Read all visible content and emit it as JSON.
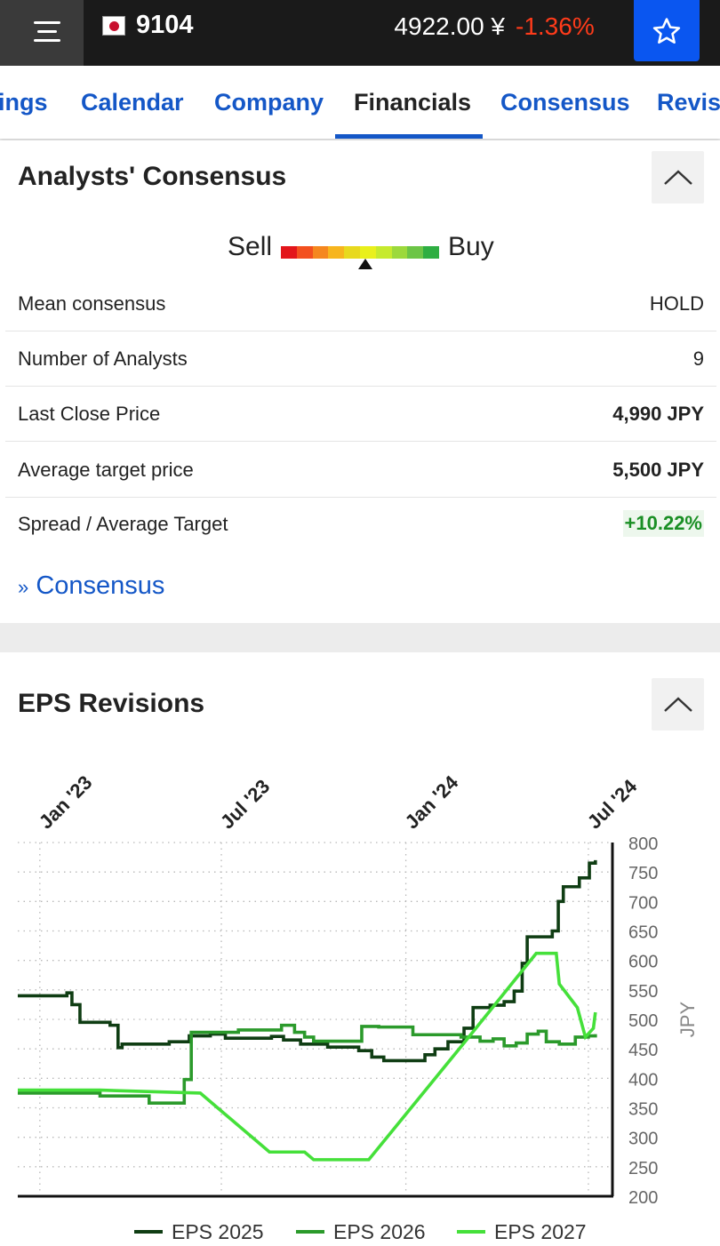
{
  "header": {
    "ticker": "9104",
    "price": "4922.00 ¥",
    "change": "-1.36%"
  },
  "tabs": [
    {
      "label": "ings"
    },
    {
      "label": "Calendar"
    },
    {
      "label": "Company"
    },
    {
      "label": "Financials",
      "active": true
    },
    {
      "label": "Consensus"
    },
    {
      "label": "Revisi"
    }
  ],
  "consensus": {
    "title": "Analysts' Consensus",
    "gauge": {
      "sell_label": "Sell",
      "buy_label": "Buy",
      "level": 0.52,
      "colors": [
        "#e3161b",
        "#f3501f",
        "#f5871f",
        "#f7b51e",
        "#e8d91e",
        "#e9f01c",
        "#c6ea2e",
        "#9cd93c",
        "#6cc546",
        "#2eae42"
      ]
    },
    "rows": [
      {
        "label": "Mean consensus",
        "value": "HOLD"
      },
      {
        "label": "Number of Analysts",
        "value": "9"
      },
      {
        "label": "Last Close Price",
        "value": "4,990 JPY"
      },
      {
        "label": "Average target price",
        "value": "5,500 JPY"
      },
      {
        "label": "Spread / Average Target",
        "value": "+10.22%"
      }
    ],
    "link_prefix": "»",
    "link_label": "Consensus"
  },
  "eps": {
    "title": "EPS Revisions"
  },
  "chart_data": {
    "type": "line",
    "title": "EPS Revisions",
    "x_ticks": [
      "Jan '23",
      "Jul '23",
      "Jan '24",
      "Jul '24"
    ],
    "x_range": [
      "2022-12-10",
      "2024-07-25"
    ],
    "ylabel": "JPY",
    "ylim": [
      200,
      800
    ],
    "y_ticks": [
      800,
      750,
      700,
      650,
      600,
      550,
      500,
      450,
      400,
      350,
      300,
      250,
      200
    ],
    "grid": true,
    "legend": "bottom",
    "series": [
      {
        "name": "EPS 2025",
        "color": "#0f3d13",
        "step": true,
        "points": [
          [
            "2022-12-10",
            540
          ],
          [
            "2023-01-28",
            545
          ],
          [
            "2023-02-02",
            525
          ],
          [
            "2023-02-10",
            495
          ],
          [
            "2023-03-12",
            490
          ],
          [
            "2023-03-20",
            452
          ],
          [
            "2023-03-24",
            458
          ],
          [
            "2023-05-10",
            462
          ],
          [
            "2023-05-30",
            472
          ],
          [
            "2023-06-20",
            475
          ],
          [
            "2023-07-05",
            468
          ],
          [
            "2023-08-20",
            471
          ],
          [
            "2023-09-01",
            465
          ],
          [
            "2023-09-18",
            458
          ],
          [
            "2023-10-15",
            453
          ],
          [
            "2023-11-15",
            447
          ],
          [
            "2023-11-28",
            436
          ],
          [
            "2023-12-10",
            430
          ],
          [
            "2024-01-20",
            440
          ],
          [
            "2024-01-30",
            450
          ],
          [
            "2024-02-12",
            462
          ],
          [
            "2024-02-28",
            485
          ],
          [
            "2024-03-08",
            520
          ],
          [
            "2024-03-25",
            524
          ],
          [
            "2024-04-08",
            530
          ],
          [
            "2024-04-18",
            548
          ],
          [
            "2024-04-26",
            595
          ],
          [
            "2024-05-01",
            640
          ],
          [
            "2024-05-26",
            650
          ],
          [
            "2024-06-01",
            700
          ],
          [
            "2024-06-06",
            725
          ],
          [
            "2024-06-22",
            740
          ],
          [
            "2024-07-02",
            765
          ],
          [
            "2024-07-08",
            770
          ]
        ]
      },
      {
        "name": "EPS 2026",
        "color": "#2b9a2b",
        "step": true,
        "points": [
          [
            "2022-12-10",
            375
          ],
          [
            "2023-03-02",
            370
          ],
          [
            "2023-04-20",
            358
          ],
          [
            "2023-05-25",
            398
          ],
          [
            "2023-06-01",
            478
          ],
          [
            "2023-07-18",
            482
          ],
          [
            "2023-08-30",
            490
          ],
          [
            "2023-09-12",
            478
          ],
          [
            "2023-09-22",
            470
          ],
          [
            "2023-10-01",
            463
          ],
          [
            "2023-11-18",
            488
          ],
          [
            "2023-12-05",
            487
          ],
          [
            "2024-01-08",
            474
          ],
          [
            "2024-02-25",
            470
          ],
          [
            "2024-03-15",
            463
          ],
          [
            "2024-03-28",
            467
          ],
          [
            "2024-04-08",
            455
          ],
          [
            "2024-04-20",
            460
          ],
          [
            "2024-05-01",
            475
          ],
          [
            "2024-05-12",
            480
          ],
          [
            "2024-05-20",
            462
          ],
          [
            "2024-06-02",
            458
          ],
          [
            "2024-06-18",
            470
          ],
          [
            "2024-07-01",
            472
          ],
          [
            "2024-07-08",
            475
          ]
        ]
      },
      {
        "name": "EPS 2027",
        "color": "#45e03a",
        "step": false,
        "points": [
          [
            "2022-12-10",
            380
          ],
          [
            "2023-03-02",
            380
          ],
          [
            "2023-06-10",
            375
          ],
          [
            "2023-08-18",
            275
          ],
          [
            "2023-09-22",
            275
          ],
          [
            "2023-10-01",
            262
          ],
          [
            "2023-11-25",
            262
          ],
          [
            "2024-02-28",
            460
          ],
          [
            "2024-05-10",
            612
          ],
          [
            "2024-05-30",
            612
          ],
          [
            "2024-06-02",
            560
          ],
          [
            "2024-06-20",
            520
          ],
          [
            "2024-06-28",
            470
          ],
          [
            "2024-07-06",
            485
          ],
          [
            "2024-07-08",
            512
          ]
        ]
      }
    ]
  }
}
